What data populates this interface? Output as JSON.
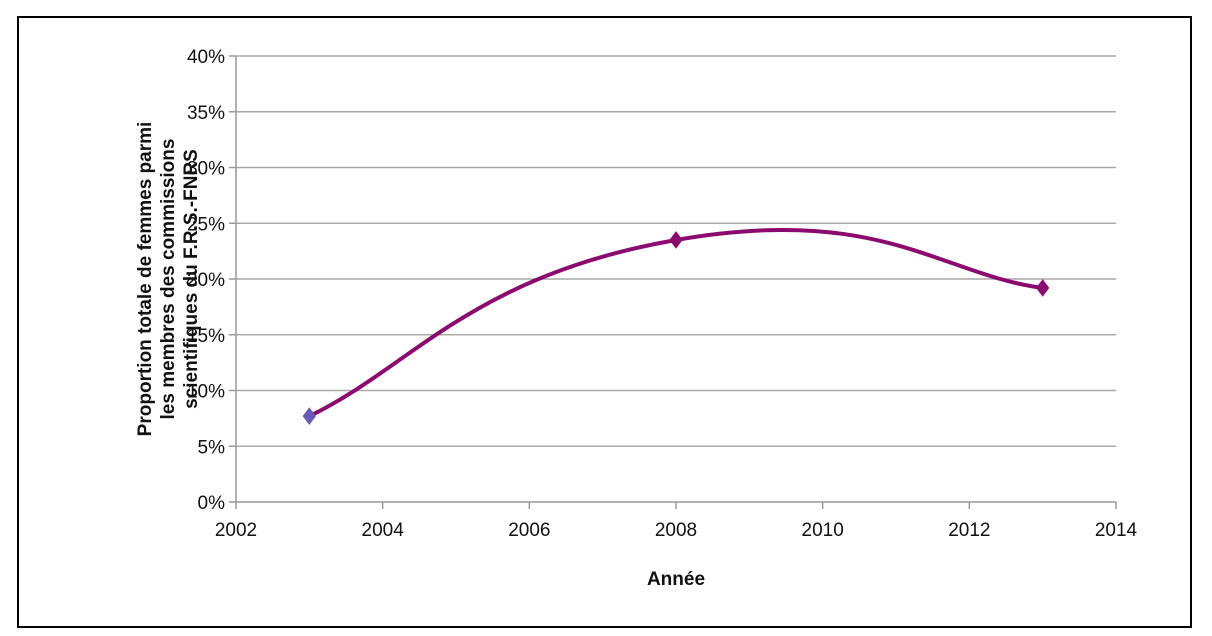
{
  "chart_data": {
    "type": "line",
    "title": "",
    "xlabel": "Année",
    "ylabel_lines": [
      "Proportion totale de femmes parmi",
      "les membres des  commissions",
      "scientifiques du F.R.S.-FNRS"
    ],
    "x": [
      2003,
      2008,
      2013
    ],
    "values": [
      0.077,
      0.235,
      0.192
    ],
    "xlim": [
      2002,
      2014
    ],
    "ylim": [
      0,
      0.4
    ],
    "x_ticks": [
      2002,
      2004,
      2006,
      2008,
      2010,
      2012,
      2014
    ],
    "y_ticks": [
      0,
      0.05,
      0.1,
      0.15,
      0.2,
      0.25,
      0.3,
      0.35,
      0.4
    ],
    "x_tick_labels": [
      "2002",
      "2004",
      "2006",
      "2008",
      "2010",
      "2012",
      "2014"
    ],
    "y_tick_labels": [
      "0%",
      "5%",
      "10%",
      "15%",
      "20%",
      "25%",
      "30%",
      "35%",
      "40%"
    ],
    "smoothed": true,
    "grid": "horizontal",
    "legend": "none",
    "line_color": "#8b0a6e",
    "marker": "diamond",
    "first_marker_color": "#6a5ab8"
  }
}
